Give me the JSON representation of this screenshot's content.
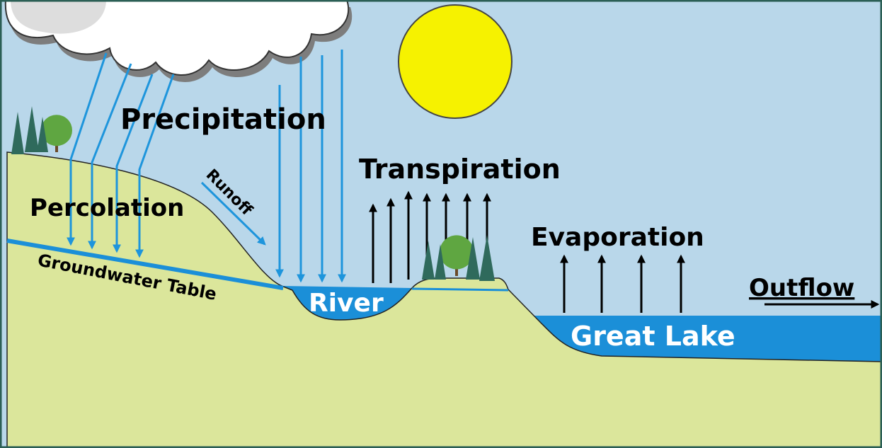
{
  "labels": {
    "precipitation": "Precipitation",
    "percolation": "Percolation",
    "runoff": "Runoff",
    "groundwater_table": "Groundwater Table",
    "river": "River",
    "transpiration": "Transpiration",
    "evaporation": "Evaporation",
    "outflow": "Outflow",
    "great_lake": "Great Lake"
  }
}
